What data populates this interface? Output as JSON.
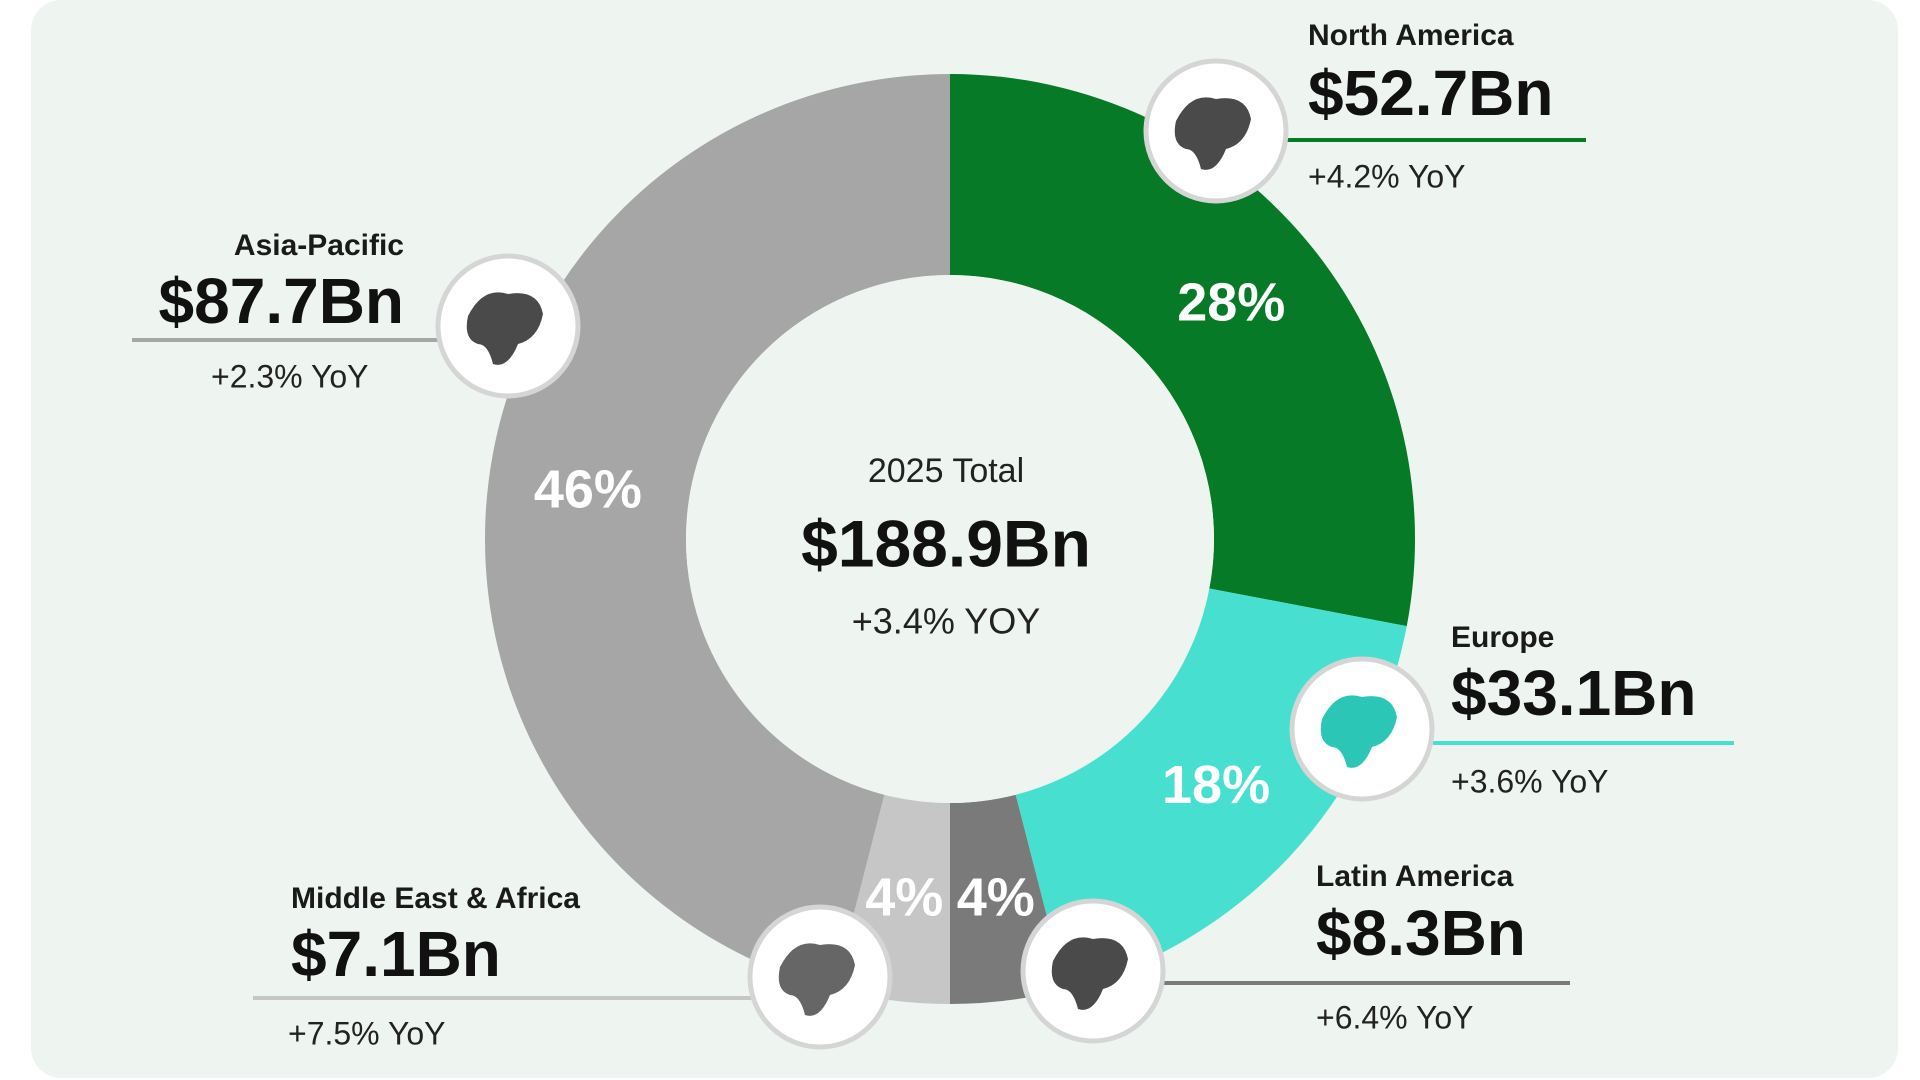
{
  "chart_data": {
    "type": "pie",
    "categories": [
      "North America",
      "Europe",
      "Latin America",
      "Middle East & Africa",
      "Asia-Pacific"
    ],
    "values": [
      28,
      18,
      4,
      4,
      46
    ],
    "value_labels": [
      "28%",
      "18%",
      "4%",
      "4%",
      "46%"
    ],
    "colors": [
      "#067a27",
      "#47e0d0",
      "#7a7a7a",
      "#c6c6c6",
      "#a6a6a6"
    ],
    "amount_labels": [
      "$52.7Bn",
      "$33.1Bn",
      "$8.3Bn",
      "$7.1Bn",
      "$87.7Bn"
    ],
    "yoy_labels": [
      "+4.2% YoY",
      "+3.6% YoY",
      "+6.4% YoY",
      "+7.5% YoY",
      "+2.3% YoY"
    ],
    "center_title": "2025 Total",
    "center_value": "$188.9Bn",
    "center_yoy": "+3.4% YOY"
  }
}
